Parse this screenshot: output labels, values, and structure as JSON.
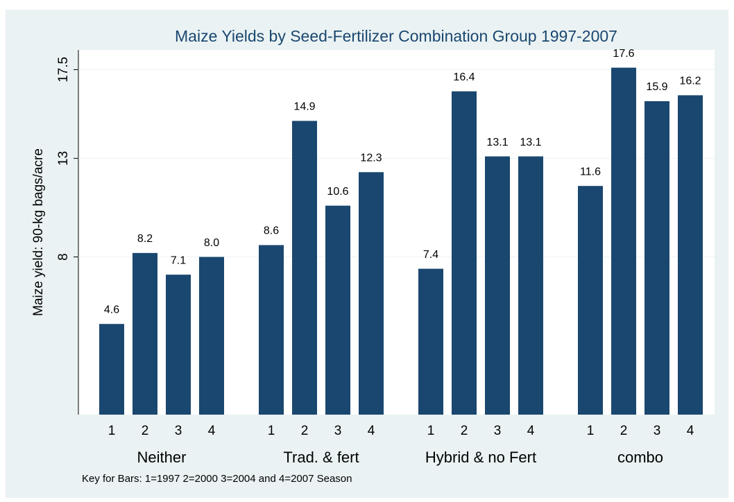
{
  "chart_data": {
    "type": "grouped-bar",
    "title": "Maize Yields by Seed-Fertilizer Combination Group 1997-2007",
    "y_label": "Maize yield: 90-kg bags/acre",
    "note": "Key for Bars: 1=1997 2=2000 3=2004 and 4=2007 Season",
    "categories": [
      "Neither",
      "Trad. & fert",
      "Hybrid & no Fert",
      "combo"
    ],
    "series": [
      {
        "name": "1",
        "color": "#1a476f",
        "values": [
          4.6,
          8.6,
          7.4,
          11.6
        ]
      },
      {
        "name": "2",
        "color": "#1a476f",
        "values": [
          8.2,
          14.9,
          16.4,
          17.6
        ]
      },
      {
        "name": "3",
        "color": "#1a476f",
        "values": [
          7.1,
          10.6,
          13.1,
          15.9
        ]
      },
      {
        "name": "4",
        "color": "#1a476f",
        "values": [
          8,
          12.3,
          13.1,
          16.2
        ],
        "value_labels": [
          "8.0",
          "12.3",
          "13.1",
          "16.2"
        ]
      }
    ],
    "ylim": [
      0,
      18.5
    ],
    "yticks": [
      8,
      13,
      17.5
    ],
    "grid": true
  }
}
